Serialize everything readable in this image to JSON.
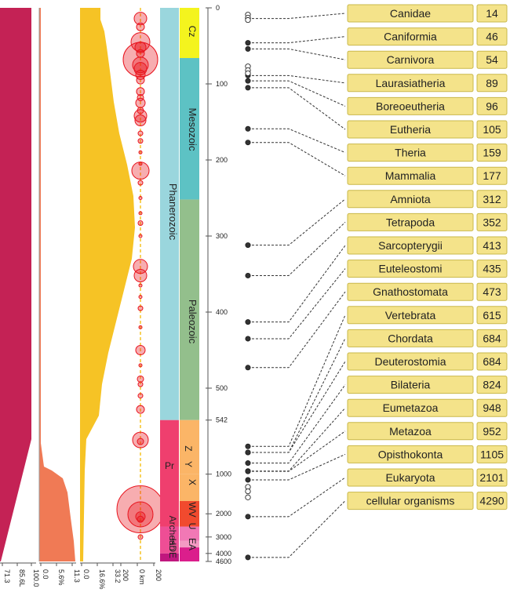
{
  "colors": {
    "crimson": "#c42255",
    "orange": "#f07a55",
    "gold": "#f6c325",
    "impact": "#e8141e",
    "box_fill": "#f4e38a",
    "box_stroke": "#c9b84a",
    "dot": "#333333"
  },
  "chart_data": {
    "type": "timeline",
    "time_axis": {
      "unit": "Mya",
      "ticks": [
        "0",
        "100",
        "200",
        "300",
        "400",
        "500",
        "542",
        "1000",
        "2000",
        "3000",
        "4000",
        "4600"
      ]
    },
    "panels": [
      {
        "id": "crimson",
        "tick_labels": [
          "71.3",
          "85.6L",
          "100.0"
        ]
      },
      {
        "id": "orange",
        "tick_labels": [
          "0.0",
          "5.6%",
          "11.3"
        ]
      },
      {
        "id": "gold",
        "tick_labels": [
          "0.0",
          "16.6%",
          "33.2"
        ]
      },
      {
        "id": "impacts",
        "tick_labels": [
          "200",
          "0 km",
          "200"
        ]
      }
    ],
    "geo_labels": {
      "eons": [
        "Phanerozoic",
        "Pr",
        "Archean",
        "HDE"
      ],
      "eras": [
        "Cz",
        "Mesozoic",
        "Paleozoic",
        "Z",
        "Y",
        "X",
        "WV",
        "U",
        "EA"
      ]
    },
    "taxa": [
      {
        "name": "Canidae",
        "age": 14
      },
      {
        "name": "Caniformia",
        "age": 46
      },
      {
        "name": "Carnivora",
        "age": 54
      },
      {
        "name": "Laurasiatheria",
        "age": 89
      },
      {
        "name": "Boreoeutheria",
        "age": 96
      },
      {
        "name": "Eutheria",
        "age": 105
      },
      {
        "name": "Theria",
        "age": 159
      },
      {
        "name": "Mammalia",
        "age": 177
      },
      {
        "name": "Amniota",
        "age": 312
      },
      {
        "name": "Tetrapoda",
        "age": 352
      },
      {
        "name": "Sarcopterygii",
        "age": 413
      },
      {
        "name": "Euteleostomi",
        "age": 435
      },
      {
        "name": "Gnathostomata",
        "age": 473
      },
      {
        "name": "Vertebrata",
        "age": 615
      },
      {
        "name": "Chordata",
        "age": 684
      },
      {
        "name": "Deuterostomia",
        "age": 684
      },
      {
        "name": "Bilateria",
        "age": 824
      },
      {
        "name": "Eumetazoa",
        "age": 948
      },
      {
        "name": "Metazoa",
        "age": 952
      },
      {
        "name": "Opisthokonta",
        "age": 1105
      },
      {
        "name": "Eukaryota",
        "age": 2101
      },
      {
        "name": "cellular organisms",
        "age": 4290
      }
    ]
  }
}
